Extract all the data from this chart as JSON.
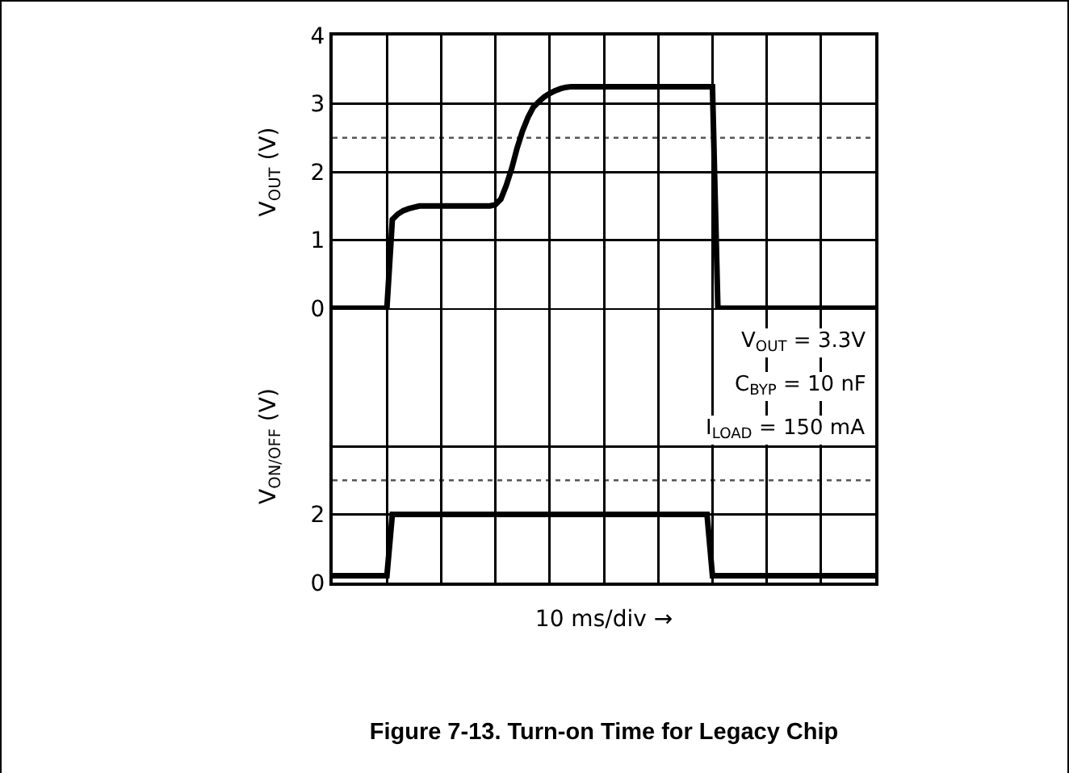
{
  "chart_data": [
    {
      "type": "line",
      "ylabel": "V$_{OUT}$ (V)",
      "categories": [
        null,
        null,
        null,
        null,
        null,
        null,
        null,
        null,
        null,
        null,
        null,
        null,
        null,
        null,
        null,
        null,
        null,
        null,
        null,
        null,
        null,
        null,
        null,
        null,
        null,
        null,
        null,
        null,
        null,
        null,
        null,
        null,
        null,
        null,
        null,
        null,
        null,
        null,
        null,
        null,
        null,
        null,
        null,
        null,
        null,
        null,
        null,
        null,
        null,
        null,
        null,
        null,
        null,
        null,
        null,
        null,
        null,
        null,
        null,
        null,
        null,
        null,
        null,
        null,
        null,
        null,
        null,
        null,
        null,
        null,
        null,
        null,
        null,
        null,
        null,
        null,
        null,
        null,
        null,
        null,
        null,
        null,
        null,
        null,
        null,
        null,
        null,
        null,
        null,
        null,
        null,
        null,
        null,
        null,
        null,
        null,
        null,
        null,
        null,
        null,
        null
      ],
      "series": [
        {
          "color": "#000000",
          "values": [
            0,
            0,
            0,
            0,
            0,
            0,
            0,
            0,
            0,
            0,
            0,
            1.3,
            1.38,
            1.43,
            1.46,
            1.48,
            1.5,
            1.5,
            1.5,
            1.5,
            1.5,
            1.5,
            1.5,
            1.5,
            1.5,
            1.5,
            1.5,
            1.5,
            1.5,
            1.5,
            1.52,
            1.6,
            1.8,
            2.05,
            2.35,
            2.6,
            2.8,
            2.95,
            3.03,
            3.1,
            3.15,
            3.19,
            3.22,
            3.24,
            3.25,
            3.25,
            3.25,
            3.25,
            3.25,
            3.25,
            3.25,
            3.25,
            3.25,
            3.25,
            3.25,
            3.25,
            3.25,
            3.25,
            3.25,
            3.25,
            3.25,
            3.25,
            3.25,
            3.25,
            3.25,
            3.25,
            3.25,
            3.25,
            3.25,
            3.25,
            3.25,
            0,
            0,
            0,
            0,
            0,
            0,
            0,
            0,
            0,
            0,
            0,
            0,
            0,
            0,
            0,
            0,
            0,
            0,
            0,
            0,
            0,
            0,
            0,
            0,
            0,
            0,
            0,
            0,
            0,
            0
          ]
        }
      ],
      "ylim": [
        0,
        4
      ],
      "yticks": [
        0,
        1,
        2,
        3,
        4
      ],
      "ref_lines": [
        {
          "axis": "y",
          "value": 2.5,
          "color": "#555555",
          "line_style": "dotted"
        }
      ],
      "grid": true,
      "tick_labels": "y",
      "marker": "none",
      "line_style": "solid"
    },
    {
      "type": "line",
      "title": "Figure 7-13. Turn-on Time for Legacy Chip",
      "xlabel": "10 ms/div →",
      "ylabel": "V$_{ON/OFF}$ (V)",
      "categories": [
        null,
        null,
        null,
        null,
        null,
        null,
        null,
        null,
        null,
        null,
        null,
        null,
        null,
        null,
        null,
        null,
        null,
        null,
        null,
        null,
        null,
        null,
        null,
        null,
        null,
        null,
        null,
        null,
        null,
        null,
        null,
        null,
        null,
        null,
        null,
        null,
        null,
        null,
        null,
        null,
        null,
        null,
        null,
        null,
        null,
        null,
        null,
        null,
        null,
        null,
        null,
        null,
        null,
        null,
        null,
        null,
        null,
        null,
        null,
        null,
        null,
        null,
        null,
        null,
        null,
        null,
        null,
        null,
        null,
        null,
        null,
        null,
        null,
        null,
        null,
        null,
        null,
        null,
        null,
        null,
        null,
        null,
        null,
        null,
        null,
        null,
        null,
        null,
        null,
        null,
        null,
        null,
        null,
        null,
        null,
        null,
        null,
        null,
        null,
        null,
        null
      ],
      "series": [
        {
          "color": "#000000",
          "values": [
            0.2,
            0.2,
            0.2,
            0.2,
            0.2,
            0.2,
            0.2,
            0.2,
            0.2,
            0.2,
            0.2,
            2,
            2,
            2,
            2,
            2,
            2,
            2,
            2,
            2,
            2,
            2,
            2,
            2,
            2,
            2,
            2,
            2,
            2,
            2,
            2,
            2,
            2,
            2,
            2,
            2,
            2,
            2,
            2,
            2,
            2,
            2,
            2,
            2,
            2,
            2,
            2,
            2,
            2,
            2,
            2,
            2,
            2,
            2,
            2,
            2,
            2,
            2,
            2,
            2,
            2,
            2,
            2,
            2,
            2,
            2,
            2,
            2,
            2,
            2,
            0.2,
            0.2,
            0.2,
            0.2,
            0.2,
            0.2,
            0.2,
            0.2,
            0.2,
            0.2,
            0.2,
            0.2,
            0.2,
            0.2,
            0.2,
            0.2,
            0.2,
            0.2,
            0.2,
            0.2,
            0.2,
            0.2,
            0.2,
            0.2,
            0.2,
            0.2,
            0.2,
            0.2,
            0.2,
            0.2,
            0.2
          ]
        }
      ],
      "ylim": [
        0,
        8
      ],
      "yticks": [
        0,
        2,
        {
          "value": 4,
          "label": null
        }
      ],
      "ref_lines": [
        {
          "axis": "y",
          "value": 3,
          "color": "#555555",
          "line_style": "dotted"
        }
      ],
      "annotations": [
        "V$_{OUT}$ = 3.3V",
        "C$_{BYP}$ = 10 nF",
        "I$_{LOAD}$ = 150 mA"
      ],
      "grid": true,
      "tick_labels": "y",
      "marker": "none",
      "line_style": "solid"
    }
  ]
}
